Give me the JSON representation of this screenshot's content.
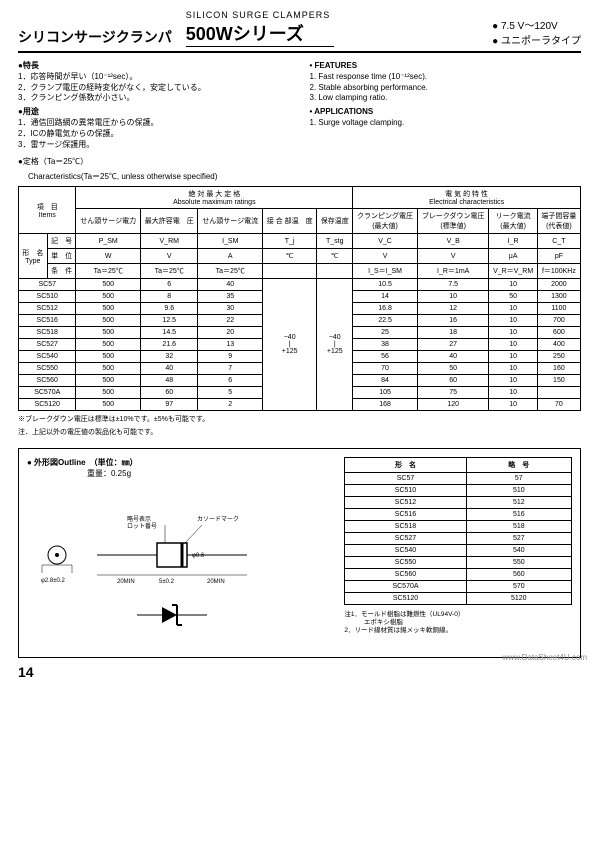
{
  "header": {
    "jp_title": "シリコンサージクランパ",
    "en_title": "SILICON SURGE CLAMPERS",
    "series": "500Wシリーズ",
    "volt_range": "● 7.5 V～120V",
    "type": "● ユニポーラタイプ"
  },
  "features_jp": {
    "tokucho_head": "●特長",
    "tokucho": [
      "1．応答時間が早い（10⁻¹²sec）。",
      "2．クランプ電圧の経時変化がなく，安定している。",
      "3．クランピング係数が小さい。"
    ],
    "youto_head": "●用途",
    "youto": [
      "1．通信回路網の異常電圧からの保護。",
      "2．ICの静電気からの保護。",
      "3．雷サージ保護用。"
    ]
  },
  "features_en": {
    "f_head": "• FEATURES",
    "f": [
      "1. Fast response time (10⁻¹²sec).",
      "2. Stable absorbing performance.",
      "3. Low clamping ratio."
    ],
    "a_head": "• APPLICATIONS",
    "a": [
      "1. Surge voltage clamping."
    ]
  },
  "teikaku": "●定格（Ta＝25℃）",
  "char_note": "Characteristics(Ta＝25℃, unless otherwise specified)",
  "tbl_hdr": {
    "koumoku": "項　目\nItems",
    "abs_jp": "絶 対 最 大 定 格",
    "abs_en": "Absolute maximum ratings",
    "elec_jp": "電 気 的 特 性",
    "elec_en": "Electrical characteristics",
    "katame": "形　名\nType",
    "kigou": "記　号",
    "tani": "単　位",
    "jouken": "条　件",
    "c1": "せん頭サージ電力",
    "c2": "最大許容電　圧",
    "c3": "せん頭サージ電流",
    "c4": "接 合 部温　度",
    "c5": "保存温度",
    "c6": "クランピング電圧\n(最大値)",
    "c7": "ブレークダウン電圧\n(標準値)",
    "c8": "リーク電流\n(最大値)",
    "c9": "端子間容量\n(代表値)",
    "sym": {
      "psm": "P_SM",
      "vrm": "V_RM",
      "ism": "I_SM",
      "tj": "T_j",
      "tstg": "T_stg",
      "vc": "V_C",
      "vb": "V_B",
      "ir": "I_R",
      "ct": "C_T"
    },
    "unit": {
      "w": "W",
      "v": "V",
      "a": "A",
      "degc": "℃",
      "ua": "μA",
      "pf": "pF"
    },
    "cond": {
      "ta": "Ta＝25℃",
      "is": "I_S＝I_SM",
      "ir": "I_R＝1mA",
      "vr": "V_R＝V_RM",
      "f": "f＝100KHz"
    }
  },
  "temp_range": "−40\n|\n+125",
  "rows": [
    {
      "type": "SC57",
      "psm": "500",
      "vrm": "6",
      "ism": "40",
      "vc": "10.5",
      "vb": "7.5",
      "ir": "10",
      "ct": "2000"
    },
    {
      "type": "SC510",
      "psm": "500",
      "vrm": "8",
      "ism": "35",
      "vc": "14",
      "vb": "10",
      "ir": "50",
      "ct": "1300"
    },
    {
      "type": "SC512",
      "psm": "500",
      "vrm": "9.6",
      "ism": "30",
      "vc": "16.8",
      "vb": "12",
      "ir": "10",
      "ct": "1100"
    },
    {
      "type": "SC516",
      "psm": "500",
      "vrm": "12.5",
      "ism": "22",
      "vc": "22.5",
      "vb": "16",
      "ir": "10",
      "ct": "700"
    },
    {
      "type": "SC518",
      "psm": "500",
      "vrm": "14.5",
      "ism": "20",
      "vc": "25",
      "vb": "18",
      "ir": "10",
      "ct": "600"
    },
    {
      "type": "SC527",
      "psm": "500",
      "vrm": "21.6",
      "ism": "13",
      "vc": "38",
      "vb": "27",
      "ir": "10",
      "ct": "400"
    },
    {
      "type": "SC540",
      "psm": "500",
      "vrm": "32",
      "ism": "9",
      "vc": "56",
      "vb": "40",
      "ir": "10",
      "ct": "250"
    },
    {
      "type": "SC550",
      "psm": "500",
      "vrm": "40",
      "ism": "7",
      "vc": "70",
      "vb": "50",
      "ir": "10",
      "ct": "160"
    },
    {
      "type": "SC560",
      "psm": "500",
      "vrm": "48",
      "ism": "6",
      "vc": "84",
      "vb": "60",
      "ir": "10",
      "ct": "150"
    },
    {
      "type": "SC570A",
      "psm": "500",
      "vrm": "60",
      "ism": "5",
      "vc": "105",
      "vb": "75",
      "ir": "10",
      "ct": ""
    },
    {
      "type": "SC5120",
      "psm": "500",
      "vrm": "97",
      "ism": "2",
      "vc": "168",
      "vb": "120",
      "ir": "10",
      "ct": "70"
    }
  ],
  "tbl_footnote1": "※ブレークダウン電圧は標準は±10%です。±5%も可能です。",
  "tbl_footnote2": "注．上記以外の電圧値の製品化も可能です。",
  "outline": {
    "head": "● 外形図Outline　（単位：㎜）",
    "weight": "重量：0.25g",
    "lbl_brand": "略号表示\nロット番号",
    "lbl_cath": "カソードマーク",
    "dim_min": "20MIN",
    "dim_body": "5±0.2",
    "dim_lead": "φ2.8±0.2",
    "dim_dia": "φ0.6"
  },
  "small_table": {
    "h1": "形　名",
    "h2": "略　号",
    "rows": [
      [
        "SC57",
        "57"
      ],
      [
        "SC510",
        "510"
      ],
      [
        "SC512",
        "512"
      ],
      [
        "SC516",
        "516"
      ],
      [
        "SC518",
        "518"
      ],
      [
        "SC527",
        "527"
      ],
      [
        "SC540",
        "540"
      ],
      [
        "SC550",
        "550"
      ],
      [
        "SC560",
        "560"
      ],
      [
        "SC570A",
        "570"
      ],
      [
        "SC5120",
        "5120"
      ]
    ]
  },
  "outline_note1": "注1．モールド樹脂は難燃性（UL94V-0）",
  "outline_note2": "　　　エポキシ樹脂",
  "outline_note3": "2．リード線材質は錫メッキ軟銅線。",
  "watermark": "www.DataSheet4U.com",
  "page_num": "14",
  "styles": {
    "border_color": "#000000",
    "bg": "#ffffff",
    "text": "#000000"
  }
}
